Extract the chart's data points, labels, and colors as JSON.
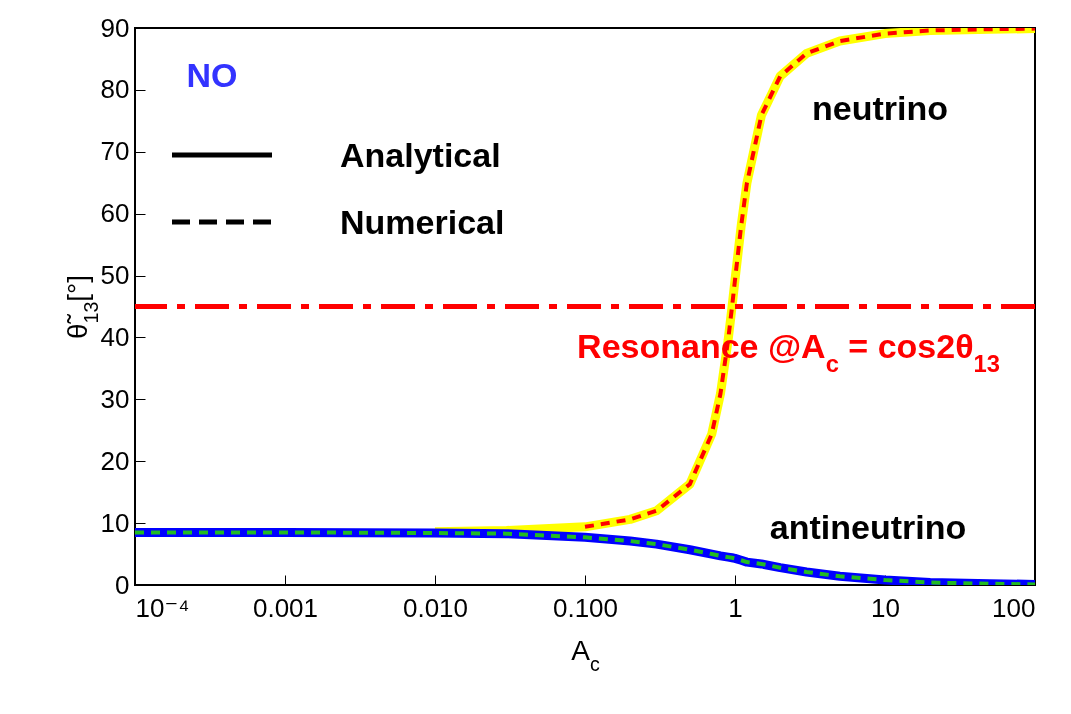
{
  "chart_data": {
    "type": "line",
    "x": [
      0.0001,
      0.001,
      0.01,
      0.03,
      0.1,
      0.2,
      0.3,
      0.5,
      0.7,
      0.8,
      0.9,
      0.956,
      1.0,
      1.1,
      1.2,
      1.5,
      2,
      3,
      5,
      10,
      20,
      50,
      100
    ],
    "series": [
      {
        "color": "#ffff00",
        "line_style": "solid",
        "values": [
          null,
          null,
          8.6,
          8.8,
          9.4,
          10.6,
          12.0,
          16.3,
          24.4,
          30.9,
          39.6,
          45.0,
          49.3,
          58.1,
          64.9,
          75.9,
          82.2,
          85.9,
          87.9,
          89.1,
          89.6,
          89.8,
          89.9
        ]
      },
      {
        "color": "#ff0000",
        "line_style": "dashed",
        "values": [
          null,
          null,
          null,
          null,
          9.4,
          10.6,
          12.0,
          16.3,
          24.4,
          30.9,
          39.6,
          45.0,
          49.3,
          58.1,
          64.9,
          75.9,
          82.2,
          85.9,
          87.9,
          89.1,
          89.6,
          89.8,
          89.9
        ]
      },
      {
        "color": "#0000ff",
        "line_style": "solid",
        "values": [
          8.5,
          8.5,
          8.4,
          8.3,
          7.7,
          7.1,
          6.6,
          5.7,
          5.0,
          4.7,
          4.5,
          4.4,
          4.3,
          4.0,
          3.7,
          3.4,
          2.8,
          2.1,
          1.4,
          0.8,
          0.4,
          0.2,
          0.1
        ]
      },
      {
        "color": "#22bb22",
        "line_style": "dashed",
        "values": [
          8.5,
          8.5,
          8.4,
          8.3,
          7.7,
          7.1,
          6.6,
          5.7,
          5.0,
          4.7,
          4.5,
          4.4,
          4.3,
          4.0,
          3.7,
          3.4,
          2.8,
          2.1,
          1.4,
          0.8,
          0.4,
          0.2,
          0.1
        ]
      }
    ],
    "xlabel": "A$_{c}$",
    "ylabel": "θ̃$_{13}$[°]",
    "log": "x",
    "grid": false,
    "xlim": [
      0.0001,
      100
    ],
    "xticks": [
      {
        "value": 0.0001,
        "label": "10⁻⁴"
      },
      {
        "value": 0.001,
        "label": "0.001"
      },
      {
        "value": 0.01,
        "label": "0.010"
      },
      {
        "value": 0.1,
        "label": "0.100"
      },
      1,
      10,
      100
    ],
    "ylim": [
      0,
      90
    ],
    "yticks": [
      0,
      10,
      20,
      30,
      40,
      50,
      60,
      70,
      80,
      90
    ],
    "ref_lines": [
      {
        "axis": "y",
        "value": 45,
        "label": "Resonance @A$_{c}$ = cos2θ$_{13}$",
        "color": "#ff0000",
        "line_style": "dashed"
      }
    ],
    "annotations": [
      "NO",
      "Analytical",
      "Numerical",
      "neutrino",
      "antineutrino"
    ]
  }
}
